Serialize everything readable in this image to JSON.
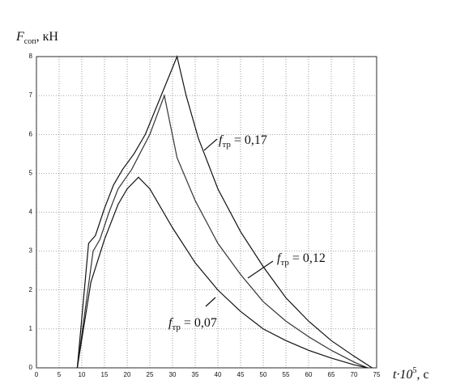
{
  "chart_data": {
    "type": "line",
    "y_label": {
      "symbol": "F",
      "subscript": "соп",
      "unit": ", кН"
    },
    "x_label": {
      "symbol": "t·10",
      "superscript": "5",
      "unit": ", с"
    },
    "xlim": [
      0,
      75
    ],
    "ylim": [
      0,
      8
    ],
    "xticks": [
      0,
      5,
      10,
      15,
      20,
      25,
      30,
      35,
      40,
      45,
      50,
      55,
      60,
      65,
      70,
      75
    ],
    "yticks": [
      0,
      1,
      2,
      3,
      4,
      5,
      6,
      7,
      8
    ],
    "grid": true,
    "series": [
      {
        "symbol": "f",
        "subscript": "тр",
        "name": "= 0,17",
        "color": "#111111",
        "x": [
          9,
          11.5,
          13,
          15,
          17,
          19,
          21.5,
          24,
          27.5,
          31,
          33,
          35.7,
          40,
          45,
          50,
          55,
          60,
          65,
          70,
          74
        ],
        "values": [
          0,
          3.2,
          3.4,
          4.1,
          4.7,
          5.1,
          5.5,
          6,
          7,
          8,
          7,
          5.9,
          4.6,
          3.5,
          2.6,
          1.8,
          1.2,
          0.7,
          0.3,
          0
        ]
      },
      {
        "symbol": "f",
        "subscript": "тр",
        "name": "= 0,12",
        "color": "#333333",
        "x": [
          9,
          12.5,
          14,
          16,
          18,
          21,
          25,
          28.2,
          31,
          35,
          40,
          45,
          50,
          55,
          60,
          65,
          70,
          73
        ],
        "values": [
          0,
          3,
          3.3,
          4,
          4.6,
          5.1,
          6,
          7,
          5.4,
          4.3,
          3.2,
          2.4,
          1.7,
          1.2,
          0.8,
          0.45,
          0.15,
          0
        ]
      },
      {
        "symbol": "f",
        "subscript": "тр",
        "name": "= 0,07",
        "color": "#111111",
        "x": [
          9,
          12,
          15,
          18,
          20,
          22.5,
          25,
          30,
          35,
          40,
          45,
          50,
          55,
          60,
          65,
          70,
          73
        ],
        "values": [
          0,
          2.2,
          3.3,
          4.2,
          4.6,
          4.9,
          4.6,
          3.6,
          2.7,
          2,
          1.45,
          1,
          0.7,
          0.45,
          0.25,
          0.08,
          0
        ]
      }
    ]
  }
}
